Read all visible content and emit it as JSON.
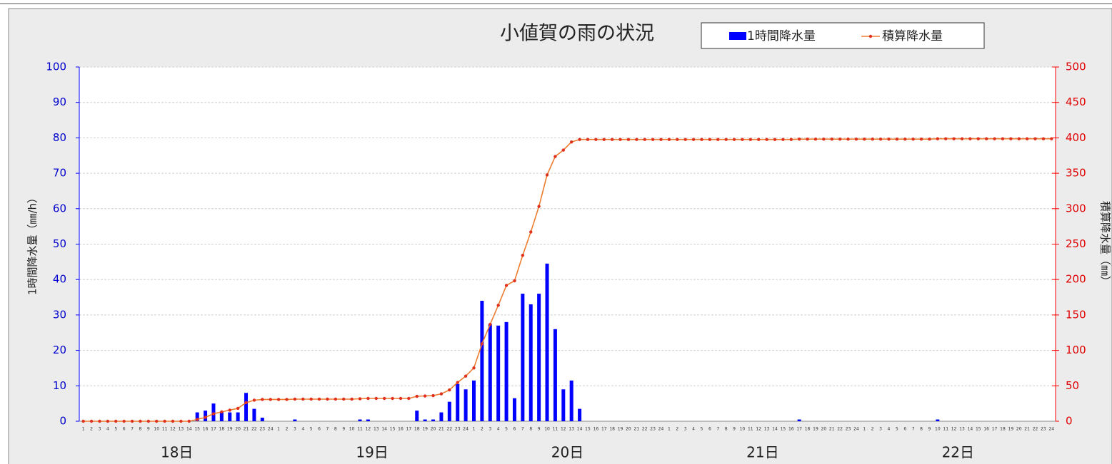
{
  "chart_data": {
    "type": "bar_line",
    "title": "小値賀の雨の状況",
    "y_label": "1時間降水量（㎜/h）",
    "y2_label": "積算降水量（㎜）",
    "categories": [
      1,
      2,
      3,
      4,
      5,
      6,
      7,
      8,
      9,
      10,
      11,
      12,
      13,
      14,
      15,
      16,
      17,
      18,
      19,
      20,
      21,
      22,
      23,
      24,
      1,
      2,
      3,
      4,
      5,
      6,
      7,
      8,
      9,
      10,
      11,
      12,
      13,
      14,
      15,
      16,
      17,
      18,
      19,
      20,
      21,
      22,
      23,
      24,
      1,
      2,
      3,
      4,
      5,
      6,
      7,
      8,
      9,
      10,
      11,
      12,
      13,
      14,
      15,
      16,
      17,
      18,
      19,
      20,
      21,
      22,
      23,
      24,
      1,
      2,
      3,
      4,
      5,
      6,
      7,
      8,
      9,
      10,
      11,
      12,
      13,
      14,
      15,
      16,
      17,
      18,
      19,
      20,
      21,
      22,
      23,
      24,
      1,
      2,
      3,
      4,
      5,
      6,
      7,
      8,
      9,
      10,
      11,
      12,
      13,
      14,
      15,
      16,
      17,
      18,
      19,
      20,
      21,
      22,
      23,
      24
    ],
    "day_labels": [
      "18日",
      "19日",
      "20日",
      "21日",
      "22日"
    ],
    "series": [
      {
        "name": "1時間降水量",
        "color": "#0000ff",
        "axis": "y",
        "values": [
          0,
          0,
          0,
          0,
          0,
          0,
          0,
          0,
          0,
          0,
          0,
          0,
          0,
          0,
          2.5,
          3,
          5,
          2.7,
          2.5,
          2.5,
          8,
          3.5,
          1,
          0,
          0,
          0,
          0.5,
          0,
          0,
          0,
          0,
          0,
          0,
          0,
          0.5,
          0.5,
          0,
          0,
          0,
          0,
          0,
          3,
          0.5,
          0.5,
          2.5,
          5.5,
          10.5,
          9,
          11.5,
          34,
          27.5,
          27,
          28,
          6.5,
          36,
          33,
          36,
          44.5,
          26,
          9,
          11.5,
          3.5,
          0,
          0,
          0,
          0,
          0,
          0,
          0,
          0,
          0,
          0,
          0,
          0,
          0,
          0,
          0,
          0,
          0,
          0,
          0,
          0,
          0,
          0,
          0,
          0,
          0,
          0,
          0.5,
          0,
          0,
          0,
          0,
          0,
          0,
          0,
          0,
          0,
          0,
          0,
          0,
          0,
          0,
          0,
          0,
          0.5,
          0,
          0,
          0,
          0,
          0,
          0,
          0,
          0,
          0,
          0,
          0,
          0,
          0,
          0
        ]
      },
      {
        "name": "積算降水量",
        "color": "#ed7d31",
        "axis": "y2",
        "values": [
          0,
          0,
          0,
          0,
          0,
          0,
          0,
          0,
          0,
          0,
          0,
          0,
          0,
          0,
          2.5,
          5.5,
          10.5,
          13.2,
          15.7,
          18.2,
          26.2,
          29.7,
          30.7,
          30.7,
          30.7,
          30.7,
          31.2,
          31.2,
          31.2,
          31.2,
          31.2,
          31.2,
          31.2,
          31.2,
          31.7,
          32.2,
          32.2,
          32.2,
          32.2,
          32.2,
          32.2,
          35.2,
          35.7,
          36.2,
          38.7,
          44.2,
          54.7,
          63.7,
          75.2,
          109.2,
          136.7,
          163.7,
          191.7,
          198.2,
          234.2,
          267.2,
          303.2,
          347.7,
          373.7,
          382.7,
          394.2,
          397.7,
          397.7,
          397.7,
          397.7,
          397.7,
          397.7,
          397.7,
          397.7,
          397.7,
          397.7,
          397.7,
          397.7,
          397.7,
          397.7,
          397.7,
          397.7,
          397.7,
          397.7,
          397.7,
          397.7,
          397.7,
          397.7,
          397.7,
          397.7,
          397.7,
          397.7,
          397.7,
          398.2,
          398.2,
          398.2,
          398.2,
          398.2,
          398.2,
          398.2,
          398.2,
          398.2,
          398.2,
          398.2,
          398.2,
          398.2,
          398.2,
          398.2,
          398.2,
          398.2,
          398.7,
          398.7,
          398.7,
          398.7,
          398.7,
          398.7,
          398.7,
          398.7,
          398.7,
          398.7,
          398.7,
          398.7,
          398.7,
          398.7,
          398.7
        ]
      }
    ],
    "ylim": [
      0,
      100
    ],
    "yticks": [
      0,
      10,
      20,
      30,
      40,
      50,
      60,
      70,
      80,
      90,
      100
    ],
    "y2lim": [
      0,
      500
    ],
    "y2ticks": [
      0,
      50,
      100,
      150,
      200,
      250,
      300,
      350,
      400,
      450,
      500
    ],
    "grid": true
  }
}
